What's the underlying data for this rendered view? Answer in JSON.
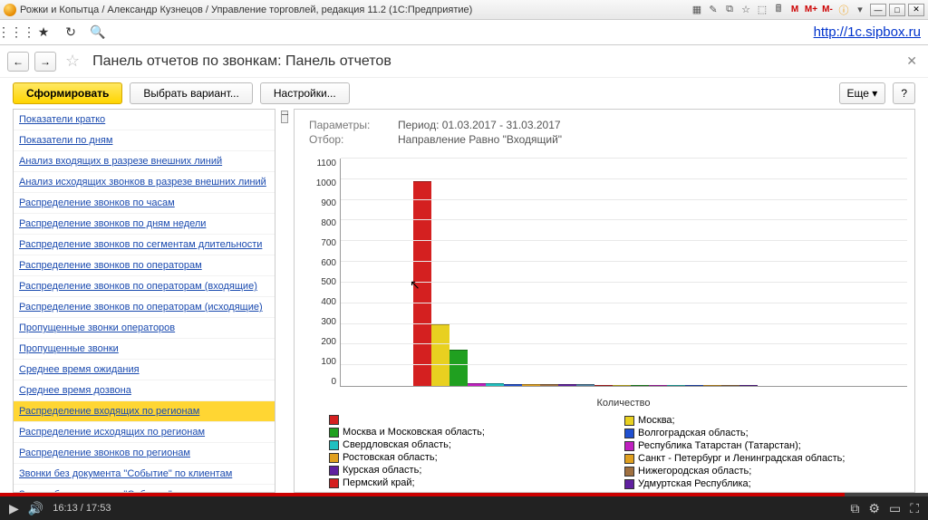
{
  "titlebar": "Рожки и Копытца / Александр Кузнецов / Управление торговлей, редакция 11.2  (1С:Предприятие)",
  "top_link": "http://1c.sipbox.ru",
  "page_title": "Панель отчетов по звонкам: Панель отчетов",
  "buttons": {
    "generate": "Сформировать",
    "variant": "Выбрать вариант...",
    "settings": "Настройки...",
    "more": "Еще",
    "help": "?"
  },
  "reports": [
    "Показатели кратко",
    "Показатели по дням",
    "Анализ входящих в разрезе внешних линий",
    "Анализ исходящих звонков в разрезе внешних линий",
    "Распределение звонков по часам",
    "Распределение звонков по дням недели",
    "Распределение звонков по сегментам длительности",
    "Распределение звонков по операторам",
    "Распределение звонков по операторам (входящие)",
    "Распределение звонков по операторам (исходящие)",
    "Пропущенные звонки операторов",
    "Пропущенные звонки",
    "Среднее время ожидания",
    "Среднее время дозвона",
    "Распределение входящих по регионам",
    "Распределение исходящих по регионам",
    "Распределение звонков по регионам",
    "Звонки без документа \"Событие\" по клиентам",
    "Звонки без документа \"Событие\" по сотрудникам"
  ],
  "active_report_index": 14,
  "params": {
    "label1": "Параметры:",
    "label2": "Отбор:",
    "period_label": "Период:",
    "period": "01.03.2017 - 31.03.2017",
    "filter": "Направление Равно \"Входящий\""
  },
  "chart": {
    "type": "bar",
    "ylim": [
      0,
      1100
    ],
    "ytick_step": 100,
    "yticks": [
      1100,
      1000,
      900,
      800,
      700,
      600,
      500,
      400,
      300,
      200,
      100,
      0
    ],
    "x_axis_label": "Количество",
    "grid_color": "#e8e8e8",
    "background_color": "#ffffff",
    "bars": [
      {
        "value": 990,
        "color": "#d42020"
      },
      {
        "value": 300,
        "color": "#e8d020"
      },
      {
        "value": 175,
        "color": "#20a020"
      },
      {
        "value": 14,
        "color": "#c020c0"
      },
      {
        "value": 12,
        "color": "#20c0c0"
      },
      {
        "value": 11,
        "color": "#2050d0"
      },
      {
        "value": 10,
        "color": "#e0a020"
      },
      {
        "value": 9,
        "color": "#a07040"
      },
      {
        "value": 8,
        "color": "#6020a0"
      },
      {
        "value": 7,
        "color": "#5080a0"
      },
      {
        "value": 6,
        "color": "#d42020"
      },
      {
        "value": 6,
        "color": "#e8d020"
      },
      {
        "value": 6,
        "color": "#20a020"
      },
      {
        "value": 5,
        "color": "#c020c0"
      },
      {
        "value": 5,
        "color": "#20c0c0"
      },
      {
        "value": 5,
        "color": "#2050d0"
      },
      {
        "value": 5,
        "color": "#e0a020"
      },
      {
        "value": 5,
        "color": "#a07040"
      },
      {
        "value": 5,
        "color": "#6020a0"
      }
    ],
    "legend_left": [
      {
        "color": "#d42020",
        "label": ""
      },
      {
        "color": "#20a020",
        "label": "Москва и Московская область;"
      },
      {
        "color": "#20c0c0",
        "label": "Свердловская область;"
      },
      {
        "color": "#e0a020",
        "label": "Ростовская область;"
      },
      {
        "color": "#6020a0",
        "label": "Курская область;"
      },
      {
        "color": "#d42020",
        "label": "Пермский край;"
      }
    ],
    "legend_right": [
      {
        "color": "#e8d020",
        "label": "Москва;"
      },
      {
        "color": "#2050d0",
        "label": "Волгоградская область;"
      },
      {
        "color": "#c020c0",
        "label": "Республика Татарстан (Татарстан);"
      },
      {
        "color": "#e0a020",
        "label": "Санкт - Петербург и Ленинградская область;"
      },
      {
        "color": "#a07040",
        "label": "Нижегородская область;"
      },
      {
        "color": "#6020a0",
        "label": "Удмуртская Республика;"
      }
    ]
  },
  "video": {
    "time": "16:13 / 17:53",
    "progress_pct": 91
  }
}
